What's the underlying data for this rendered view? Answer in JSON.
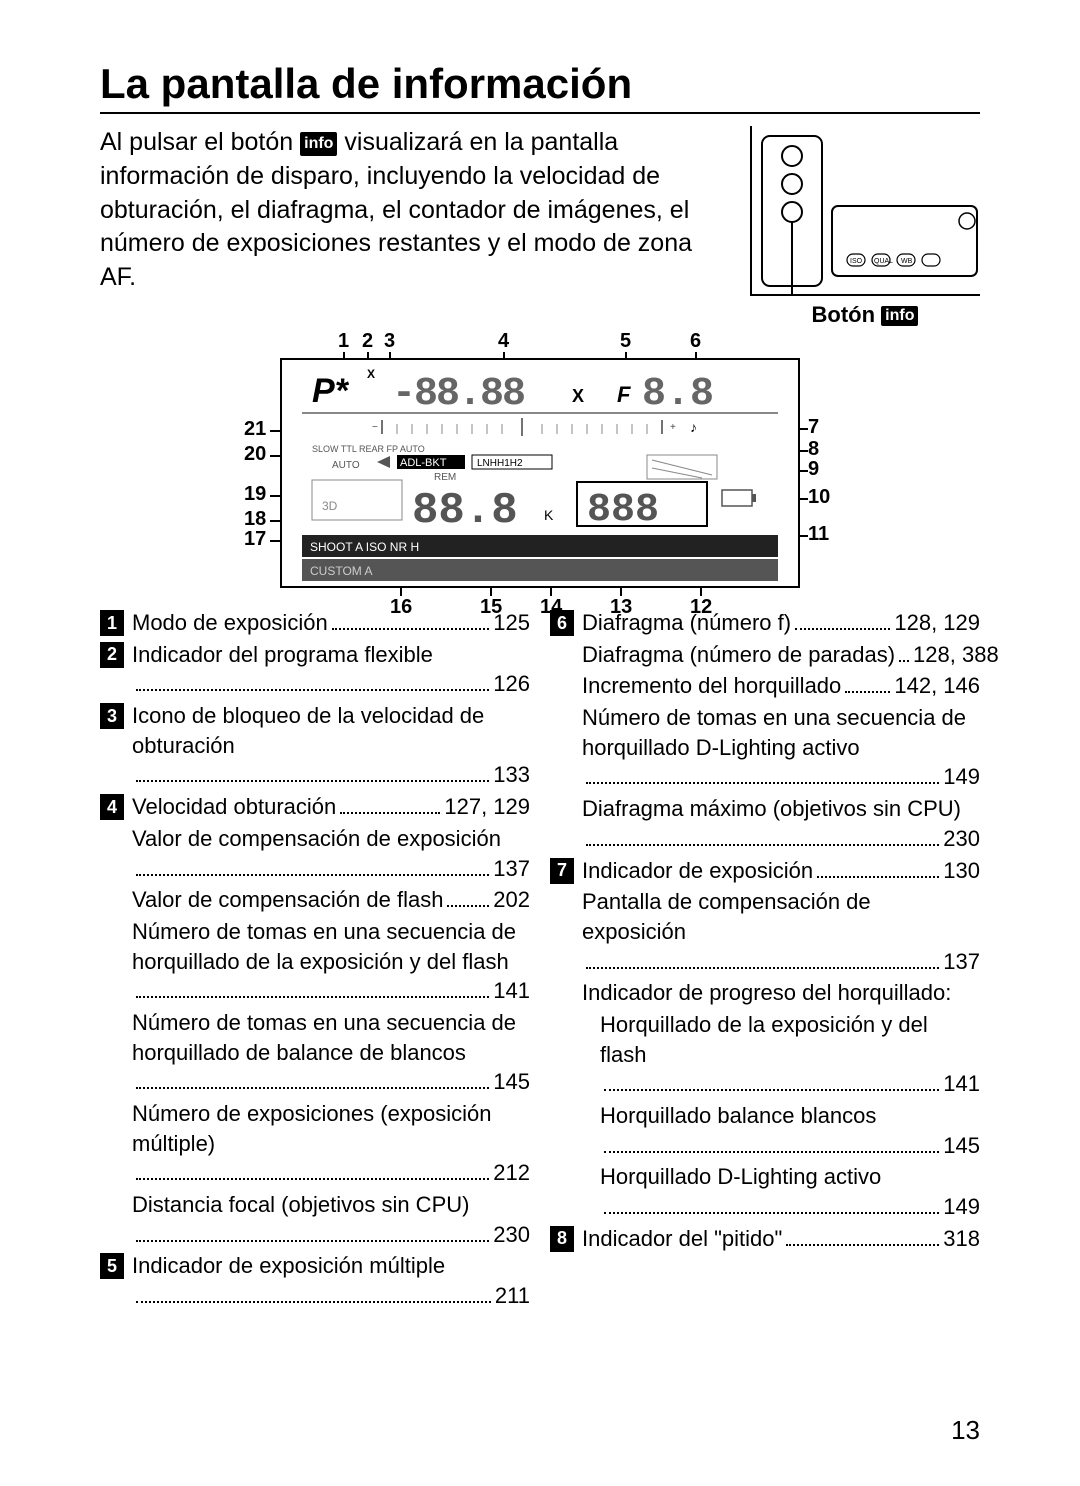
{
  "title": "La pantalla de información",
  "intro": {
    "part1": "Al pulsar el botón ",
    "part2": " visualizará en la pantalla información de disparo, incluyendo la velocidad de obturación, el diafragma, el contador de imágenes, el número de exposiciones restantes y el modo de zona AF."
  },
  "info_icon_label": "info",
  "button_caption": "Botón ",
  "callouts_top": [
    "1",
    "2",
    "3",
    "4",
    "5",
    "6"
  ],
  "callouts_right": [
    "7",
    "8",
    "9",
    "10",
    "11"
  ],
  "callouts_left": [
    "21",
    "20",
    "19",
    "18",
    "17"
  ],
  "callouts_bottom": [
    "16",
    "15",
    "14",
    "13",
    "12"
  ],
  "lcd_text": {
    "row1_left": "P*",
    "row1_main": "-88.88",
    "row1_x": "X",
    "row1_f": "F",
    "row1_aperture": "8.8",
    "row2_labels": "SLOW TTL REAR FP  AUTO",
    "row2_adl": "ADL-BKT",
    "row2_rem": "REM",
    "row2_lnh": "LNHH1H2",
    "row3_main": "88.8",
    "row3_k": "K",
    "row3_count": "888",
    "row4_shoot": "SHOOT A  ISO NR H",
    "row4_custom": "CUSTOM A"
  },
  "legend_left": [
    {
      "n": "1",
      "rows": [
        {
          "label": "Modo de exposición",
          "page": "125"
        }
      ]
    },
    {
      "n": "2",
      "rows": [
        {
          "label": "Indicador del programa flexible",
          "page": "126"
        }
      ]
    },
    {
      "n": "3",
      "rows": [
        {
          "label": "Icono de bloqueo de la velocidad de obturación",
          "page": "133"
        }
      ]
    },
    {
      "n": "4",
      "rows": [
        {
          "label": "Velocidad obturación",
          "page": "127, 129"
        },
        {
          "label": "Valor de compensación de exposición",
          "page": "137"
        },
        {
          "label": "Valor de compensación de flash",
          "page": "202"
        },
        {
          "label": "Número de tomas en una secuencia de horquillado de la exposición y del flash",
          "page": "141"
        },
        {
          "label": "Número de tomas en una secuencia de horquillado de balance de blancos",
          "page": "145"
        },
        {
          "label": "Número de exposiciones (exposición múltiple)",
          "page": "212"
        },
        {
          "label": "Distancia focal (objetivos sin CPU)",
          "page": "230"
        }
      ]
    },
    {
      "n": "5",
      "rows": [
        {
          "label": "Indicador de exposición múltiple",
          "page": "211"
        }
      ]
    }
  ],
  "legend_right": [
    {
      "n": "6",
      "rows": [
        {
          "label": "Diafragma (número f)",
          "page": "128, 129"
        },
        {
          "label": "Diafragma (número de paradas)",
          "page": "128, 388"
        },
        {
          "label": "Incremento del horquillado",
          "page": "142, 146"
        },
        {
          "label": "Número de tomas en una secuencia de horquillado D-Lighting activo",
          "page": "149"
        },
        {
          "label": "Diafragma máximo (objetivos sin CPU)",
          "page": "230"
        }
      ]
    },
    {
      "n": "7",
      "rows": [
        {
          "label": "Indicador de exposición",
          "page": "130"
        },
        {
          "label": "Pantalla de compensación de exposición",
          "page": "137"
        },
        {
          "label": "Indicador de progreso del horquillado:",
          "page": ""
        },
        {
          "label": "Horquillado de la exposición y del flash",
          "page": "141",
          "indent": true
        },
        {
          "label": "Horquillado balance blancos",
          "page": "145",
          "indent": true
        },
        {
          "label": "Horquillado D-Lighting activo",
          "page": "149",
          "indent": true
        }
      ]
    },
    {
      "n": "8",
      "rows": [
        {
          "label": "Indicador del \"pitido\"",
          "page": "318"
        }
      ]
    }
  ],
  "page_number": "13"
}
